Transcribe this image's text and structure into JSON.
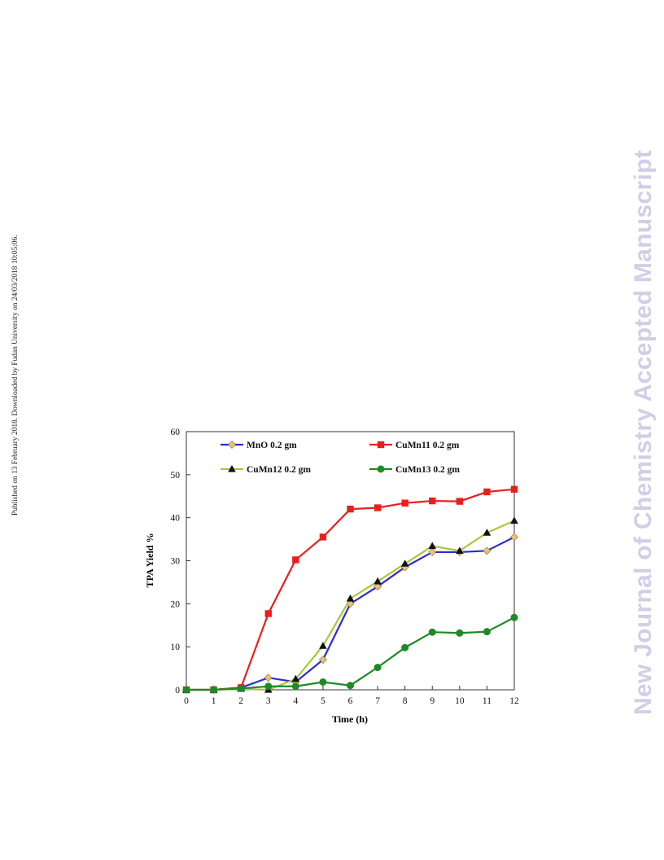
{
  "side_note": "Published on 13 February 2018. Downloaded by Fudan University on 24/03/2018 10:05:06.",
  "watermark": "New Journal of Chemistry Accepted Manuscript",
  "chart_data": {
    "type": "line",
    "title": "",
    "xlabel": "Time (h)",
    "ylabel": "TPA Yield  %",
    "x": [
      0,
      1,
      2,
      3,
      4,
      5,
      6,
      7,
      8,
      9,
      10,
      11,
      12
    ],
    "xlim": [
      0,
      12
    ],
    "ylim": [
      0,
      60
    ],
    "yticks": [
      0,
      10,
      20,
      30,
      40,
      50,
      60
    ],
    "grid": false,
    "legend_position": "top-inside",
    "series": [
      {
        "name": "MnO  0.2 gm",
        "color": "#2b2bd6",
        "marker": "diamond",
        "marker_color": "#f0c070",
        "values": [
          0,
          0,
          0.5,
          2.8,
          1.8,
          7,
          20,
          24,
          28.5,
          32,
          32,
          32.3,
          35.5
        ]
      },
      {
        "name": "CuMn11  0.2 gm",
        "color": "#e8201c",
        "marker": "square",
        "marker_color": "#e8201c",
        "values": [
          0,
          0,
          0.5,
          17.7,
          30.2,
          35.5,
          42,
          42.3,
          43.4,
          43.9,
          43.8,
          46,
          46.6
        ]
      },
      {
        "name": "CuMn12  0.2 gm",
        "color": "#a8c83a",
        "marker": "triangle",
        "marker_color": "#111111",
        "values": [
          0,
          0,
          0.2,
          0,
          2.5,
          10.2,
          21.2,
          25.2,
          29.3,
          33.4,
          32.3,
          36.5,
          39.3
        ]
      },
      {
        "name": "CuMn13  0.2 gm",
        "color": "#1e8a26",
        "marker": "circle",
        "marker_color": "#1e8a26",
        "values": [
          0,
          0,
          0.3,
          0.8,
          0.8,
          1.8,
          1,
          5.2,
          9.8,
          13.4,
          13.2,
          13.5,
          16.8
        ]
      }
    ]
  }
}
